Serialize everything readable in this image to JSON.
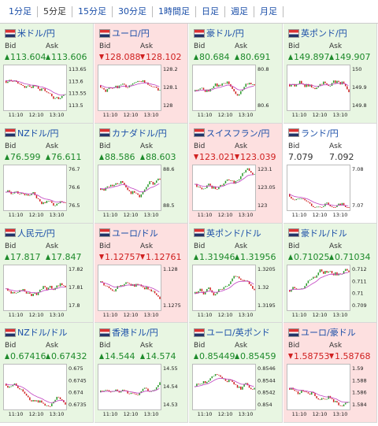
{
  "tabs": [
    "1分足",
    "5分足",
    "15分足",
    "30分足",
    "1時間足",
    "日足",
    "週足",
    "月足"
  ],
  "selected_tab": 1,
  "bid_label": "Bid",
  "ask_label": "Ask",
  "time_labels": [
    "11:10",
    "12:10",
    "13:10"
  ],
  "tiles": [
    {
      "name": "米ドル/円",
      "dir": "up",
      "bid": "113.604",
      "ask": "113.606",
      "yticks": [
        "113.65",
        "113.6",
        "113.55",
        "113.5"
      ]
    },
    {
      "name": "ユーロ/円",
      "dir": "down",
      "bid": "128.088",
      "ask": "128.102",
      "yticks": [
        "128.2",
        "128.1",
        "128"
      ]
    },
    {
      "name": "豪ドル/円",
      "dir": "up",
      "bid": "80.684",
      "ask": "80.691",
      "yticks": [
        "80.8",
        "80.6"
      ]
    },
    {
      "name": "英ポンド/円",
      "dir": "up",
      "bid": "149.897",
      "ask": "149.907",
      "yticks": [
        "150",
        "149.9",
        "149.8"
      ]
    },
    {
      "name": "NZドル/円",
      "dir": "up",
      "bid": "76.599",
      "ask": "76.611",
      "yticks": [
        "76.7",
        "76.6",
        "76.5"
      ]
    },
    {
      "name": "カナダドル/円",
      "dir": "up",
      "bid": "88.586",
      "ask": "88.603",
      "yticks": [
        "88.6",
        "88.5"
      ]
    },
    {
      "name": "スイスフラン/円",
      "dir": "down",
      "bid": "123.021",
      "ask": "123.039",
      "yticks": [
        "123.1",
        "123.05",
        "123"
      ]
    },
    {
      "name": "ランド/円",
      "dir": null,
      "bid": "7.079",
      "ask": "7.092",
      "yticks": [
        "7.08",
        "7.07"
      ]
    },
    {
      "name": "人民元/円",
      "dir": "up",
      "bid": "17.817",
      "ask": "17.847",
      "yticks": [
        "17.82",
        "17.81",
        "17.8"
      ]
    },
    {
      "name": "ユーロ/ドル",
      "dir": "down",
      "bid": "1.12757",
      "ask": "1.12761",
      "yticks": [
        "1.128",
        "1.1275"
      ]
    },
    {
      "name": "英ポンド/ドル",
      "dir": "up",
      "bid": "1.31946",
      "ask": "1.31956",
      "yticks": [
        "1.3205",
        "1.32",
        "1.3195"
      ]
    },
    {
      "name": "豪ドル/ドル",
      "dir": "up",
      "bid": "0.71025",
      "ask": "0.71034",
      "yticks": [
        "0.712",
        "0.711",
        "0.71",
        "0.709"
      ]
    },
    {
      "name": "NZドル/ドル",
      "dir": "up",
      "bid": "0.67416",
      "ask": "0.67432",
      "yticks": [
        "0.675",
        "0.6745",
        "0.674",
        "0.6735"
      ]
    },
    {
      "name": "香港ドル/円",
      "dir": "up",
      "bid": "14.544",
      "ask": "14.574",
      "yticks": [
        "14.55",
        "14.54",
        "14.53"
      ]
    },
    {
      "name": "ユーロ/英ポンド",
      "dir": "up",
      "bid": "0.85449",
      "ask": "0.85459",
      "yticks": [
        "0.8546",
        "0.8544",
        "0.8542",
        "0.854"
      ]
    },
    {
      "name": "ユーロ/豪ドル",
      "dir": "down",
      "bid": "1.58753",
      "ask": "1.58768",
      "yticks": [
        "1.59",
        "1.588",
        "1.586",
        "1.584"
      ]
    }
  ]
}
